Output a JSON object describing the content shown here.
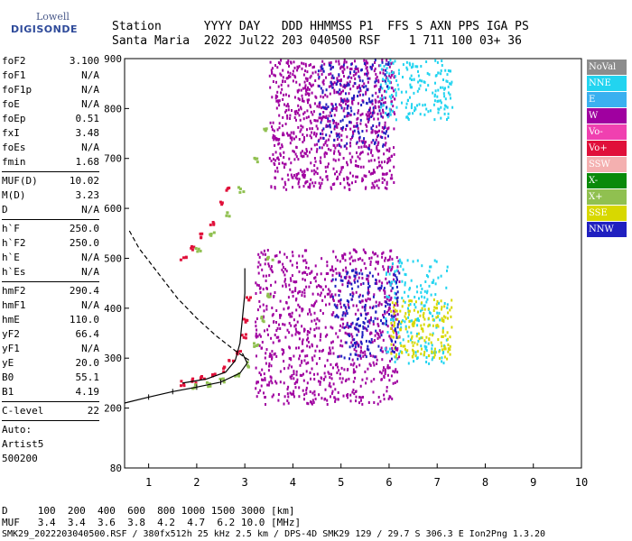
{
  "logo": {
    "line1": "Lowell",
    "line2": "DIGISONDE"
  },
  "header": {
    "labels": "Station      YYYY DAY   DDD HHMMSS P1  FFS S AXN PPS IGA PS",
    "values": "Santa Maria  2022 Jul22 203 040500 RSF    1 711 100 03+ 36"
  },
  "params": {
    "group1": [
      [
        "foF2",
        "3.100"
      ],
      [
        "foF1",
        "N/A"
      ],
      [
        "foF1p",
        "N/A"
      ],
      [
        "foE",
        "N/A"
      ],
      [
        "foEp",
        "0.51"
      ],
      [
        "fxI",
        "3.48"
      ],
      [
        "foEs",
        "N/A"
      ],
      [
        "fmin",
        "1.68"
      ]
    ],
    "group2": [
      [
        "MUF(D)",
        "10.02"
      ],
      [
        "M(D)",
        "3.23"
      ],
      [
        "D",
        "N/A"
      ]
    ],
    "group3": [
      [
        "h`F",
        "250.0"
      ],
      [
        "h`F2",
        "250.0"
      ],
      [
        "h`E",
        "N/A"
      ],
      [
        "h`Es",
        "N/A"
      ]
    ],
    "group4": [
      [
        "hmF2",
        "290.4"
      ],
      [
        "hmF1",
        "N/A"
      ],
      [
        "hmE",
        "110.0"
      ],
      [
        "yF2",
        "66.4"
      ],
      [
        "yF1",
        "N/A"
      ],
      [
        "yE",
        "20.0"
      ],
      [
        "B0",
        "55.1"
      ],
      [
        "B1",
        "4.19"
      ]
    ],
    "group5": [
      [
        "C-level",
        "22"
      ]
    ],
    "auto": [
      "Auto:",
      "Artist5",
      "500200"
    ]
  },
  "legend": [
    {
      "label": "NoVal",
      "color": "#8c8c8c"
    },
    {
      "label": "NNE",
      "color": "#22d4f0"
    },
    {
      "label": "E",
      "color": "#3ab0f0"
    },
    {
      "label": "W",
      "color": "#a000a0"
    },
    {
      "label": "Vo-",
      "color": "#f040b0"
    },
    {
      "label": "Vo+",
      "color": "#e0103a"
    },
    {
      "label": "SSW",
      "color": "#f4b0b0"
    },
    {
      "label": "X-",
      "color": "#0a8a0a"
    },
    {
      "label": "X+",
      "color": "#90c050"
    },
    {
      "label": "SSE",
      "color": "#d8d800"
    },
    {
      "label": "NNW",
      "color": "#2020c0"
    }
  ],
  "chart_data": {
    "type": "scatter",
    "xlim": [
      0.5,
      10
    ],
    "ylim": [
      80,
      900
    ],
    "xticks": [
      1,
      2,
      3,
      4,
      5,
      6,
      7,
      8,
      9,
      10
    ],
    "yticks": [
      80,
      200,
      300,
      400,
      500,
      600,
      700,
      800,
      900
    ],
    "grid": false,
    "legend_position": "right",
    "series": [
      {
        "legend": "Vo+",
        "color": "#e0103a",
        "points": [
          [
            1.7,
            253
          ],
          [
            1.9,
            258
          ],
          [
            2.1,
            263
          ],
          [
            2.3,
            270
          ],
          [
            2.5,
            280
          ],
          [
            2.7,
            295
          ],
          [
            2.85,
            315
          ],
          [
            2.95,
            345
          ],
          [
            3.0,
            380
          ],
          [
            3.05,
            420
          ],
          [
            1.7,
            505
          ],
          [
            1.9,
            525
          ],
          [
            2.1,
            548
          ],
          [
            2.3,
            575
          ],
          [
            2.5,
            610
          ],
          [
            2.65,
            640
          ]
        ]
      },
      {
        "legend": "X+",
        "color": "#90c050",
        "points": [
          [
            1.9,
            245
          ],
          [
            2.2,
            250
          ],
          [
            2.5,
            258
          ],
          [
            2.8,
            270
          ],
          [
            3.0,
            290
          ],
          [
            3.2,
            330
          ],
          [
            3.35,
            380
          ],
          [
            3.45,
            430
          ],
          [
            3.5,
            500
          ],
          [
            2.0,
            520
          ],
          [
            2.3,
            550
          ],
          [
            2.6,
            590
          ],
          [
            2.9,
            640
          ],
          [
            3.2,
            700
          ],
          [
            3.4,
            760
          ]
        ]
      },
      {
        "legend": "W",
        "color": "#a000a0",
        "regions": [
          {
            "x": [
              3.2,
              6.2
            ],
            "y": [
              210,
              520
            ]
          },
          {
            "x": [
              3.5,
              6.1
            ],
            "y": [
              640,
              900
            ]
          }
        ]
      },
      {
        "legend": "NNE",
        "color": "#22d4f0",
        "regions": [
          {
            "x": [
              5.9,
              7.2
            ],
            "y": [
              290,
              500
            ]
          },
          {
            "x": [
              5.8,
              7.3
            ],
            "y": [
              780,
              900
            ]
          }
        ]
      },
      {
        "legend": "SSE",
        "color": "#d8d800",
        "regions": [
          {
            "x": [
              6.0,
              7.3
            ],
            "y": [
              300,
              420
            ]
          }
        ]
      },
      {
        "legend": "NNW",
        "color": "#2020c0",
        "regions": [
          {
            "x": [
              4.8,
              6.2
            ],
            "y": [
              300,
              480
            ]
          },
          {
            "x": [
              4.5,
              6.0
            ],
            "y": [
              720,
              900
            ]
          }
        ]
      }
    ],
    "profile": {
      "solid": [
        [
          0.5,
          210
        ],
        [
          1.0,
          222
        ],
        [
          1.5,
          233
        ],
        [
          2.0,
          242
        ],
        [
          2.5,
          252
        ],
        [
          2.9,
          270
        ],
        [
          3.05,
          290
        ],
        [
          2.95,
          310
        ]
      ],
      "dashed": [
        [
          0.6,
          555
        ],
        [
          0.8,
          520
        ],
        [
          1.2,
          470
        ],
        [
          1.6,
          420
        ],
        [
          2.0,
          380
        ],
        [
          2.4,
          345
        ],
        [
          2.8,
          315
        ],
        [
          3.1,
          295
        ]
      ],
      "trace": [
        [
          1.7,
          250
        ],
        [
          2.2,
          258
        ],
        [
          2.6,
          272
        ],
        [
          2.8,
          295
        ],
        [
          2.9,
          330
        ],
        [
          2.95,
          380
        ],
        [
          3.0,
          430
        ],
        [
          3.0,
          480
        ]
      ]
    }
  },
  "footer": {
    "line1": "D     100  200  400  600  800 1000 1500 3000 [km]",
    "line2": "MUF   3.4  3.4  3.6  3.8  4.2  4.7  6.2 10.0 [MHz]",
    "line3": "SMK29_2022203040500.RSF / 380fx512h 25 kHz 2.5 km / DPS-4D SMK29 129 / 29.7 S 306.3 E Ion2Png 1.3.20"
  }
}
